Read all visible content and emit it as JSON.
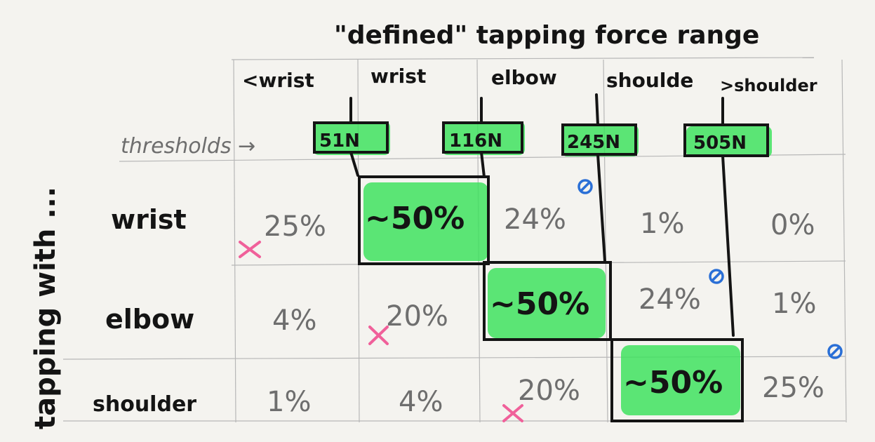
{
  "title": "\"defined\" tapping force range",
  "column_headers": [
    "<wrist",
    "wrist",
    "elbow",
    "shoulde",
    ">shoulder"
  ],
  "thresholds_label": "thresholds →",
  "thresholds": [
    "51N",
    "116N",
    "245N",
    "505N"
  ],
  "row_group_label": "tapping with ...",
  "rows": [
    {
      "label": "wrist",
      "cells": [
        "25%",
        "~50%",
        "24%",
        "1%",
        "0%"
      ]
    },
    {
      "label": "elbow",
      "cells": [
        "4%",
        "20%",
        "~50%",
        "24%",
        "1%"
      ]
    },
    {
      "label": "shoulder",
      "cells": [
        "1%",
        "4%",
        "20%",
        "~50%",
        "25%"
      ]
    }
  ],
  "colors": {
    "paper": "#f4f3ef",
    "highlight": "#39e25a",
    "ink": "#141414",
    "pencil": "#6e6e6e",
    "cross_mark": "#f0609a",
    "circle_mark": "#2a6fd6"
  }
}
